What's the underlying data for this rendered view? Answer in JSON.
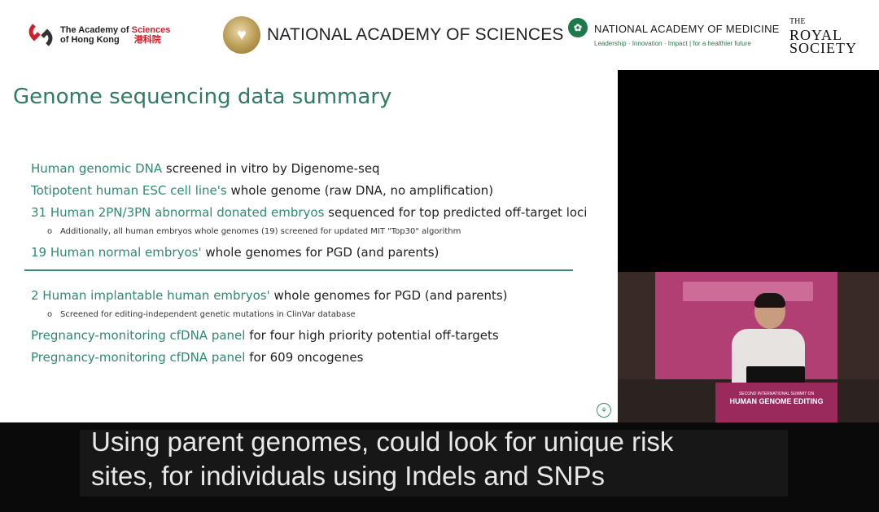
{
  "header": {
    "hk": {
      "line1_pre": "The Academy of ",
      "line1_red": "Sciences",
      "line2": "of Hong Kong",
      "chinese": "港科院"
    },
    "nas": {
      "name": "NATIONAL ACADEMY OF SCIENCES"
    },
    "nam": {
      "name": "NATIONAL ACADEMY OF MEDICINE",
      "tagline": "Leadership · Innovation · Impact | for a healthier future"
    },
    "royal": {
      "the": "THE",
      "royal": "ROYAL",
      "society": "SOCIETY"
    }
  },
  "slide": {
    "title": "Genome sequencing data summary",
    "lines": [
      {
        "hl": "Human genomic DNA",
        "rest": " screened in vitro by Digenome-seq"
      },
      {
        "hl": "Totipotent human ESC cell line's",
        "rest": " whole genome (raw DNA, no amplification)"
      },
      {
        "hl": "31 Human 2PN/3PN abnormal donated embryos",
        "rest": " sequenced for top predicted off-target loci"
      },
      {
        "hl": "19 Human normal embryos'",
        "rest": " whole genomes for PGD (and parents)"
      },
      {
        "hl": "2 Human implantable human embryos'",
        "rest": " whole genomes for PGD (and parents)"
      },
      {
        "hl": "Pregnancy-monitoring cfDNA panel",
        "rest": "    for four high priority potential off-targets"
      },
      {
        "hl": "Pregnancy-monitoring cfDNA panel",
        "rest": " for 609 oncogenes"
      }
    ],
    "subs": [
      {
        "bullet": "o",
        "text": "Additionally, all human embryos whole genomes (19) screened for updated MIT \"Top30\" algorithm"
      },
      {
        "bullet": "o",
        "text": "Screened for editing-independent genetic mutations in ClinVar database"
      }
    ]
  },
  "video": {
    "podium_line1": "SECOND INTERNATIONAL SUMMIT ON",
    "podium_line2": "HUMAN GENOME EDITING"
  },
  "caption": {
    "line1": "Using parent genomes, could look for unique risk",
    "line2": "sites, for individuals using Indels and SNPs"
  }
}
